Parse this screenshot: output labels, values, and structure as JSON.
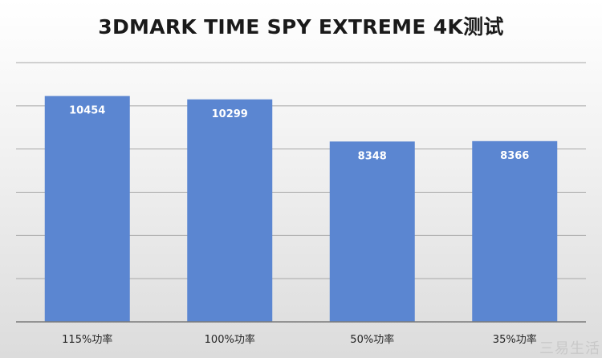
{
  "chart_data": {
    "type": "bar",
    "title": "3DMARK TIME SPY EXTREME 4K测试",
    "categories": [
      "115%功率",
      "100%功率",
      "50%功率",
      "35%功率"
    ],
    "values": [
      10454,
      10299,
      8348,
      8366
    ],
    "ylim": [
      0,
      12000
    ],
    "grid": true,
    "legend": "none",
    "bar_color": "#5b86d1",
    "data_label_color": "#ffffff"
  },
  "watermark": "三易生活"
}
